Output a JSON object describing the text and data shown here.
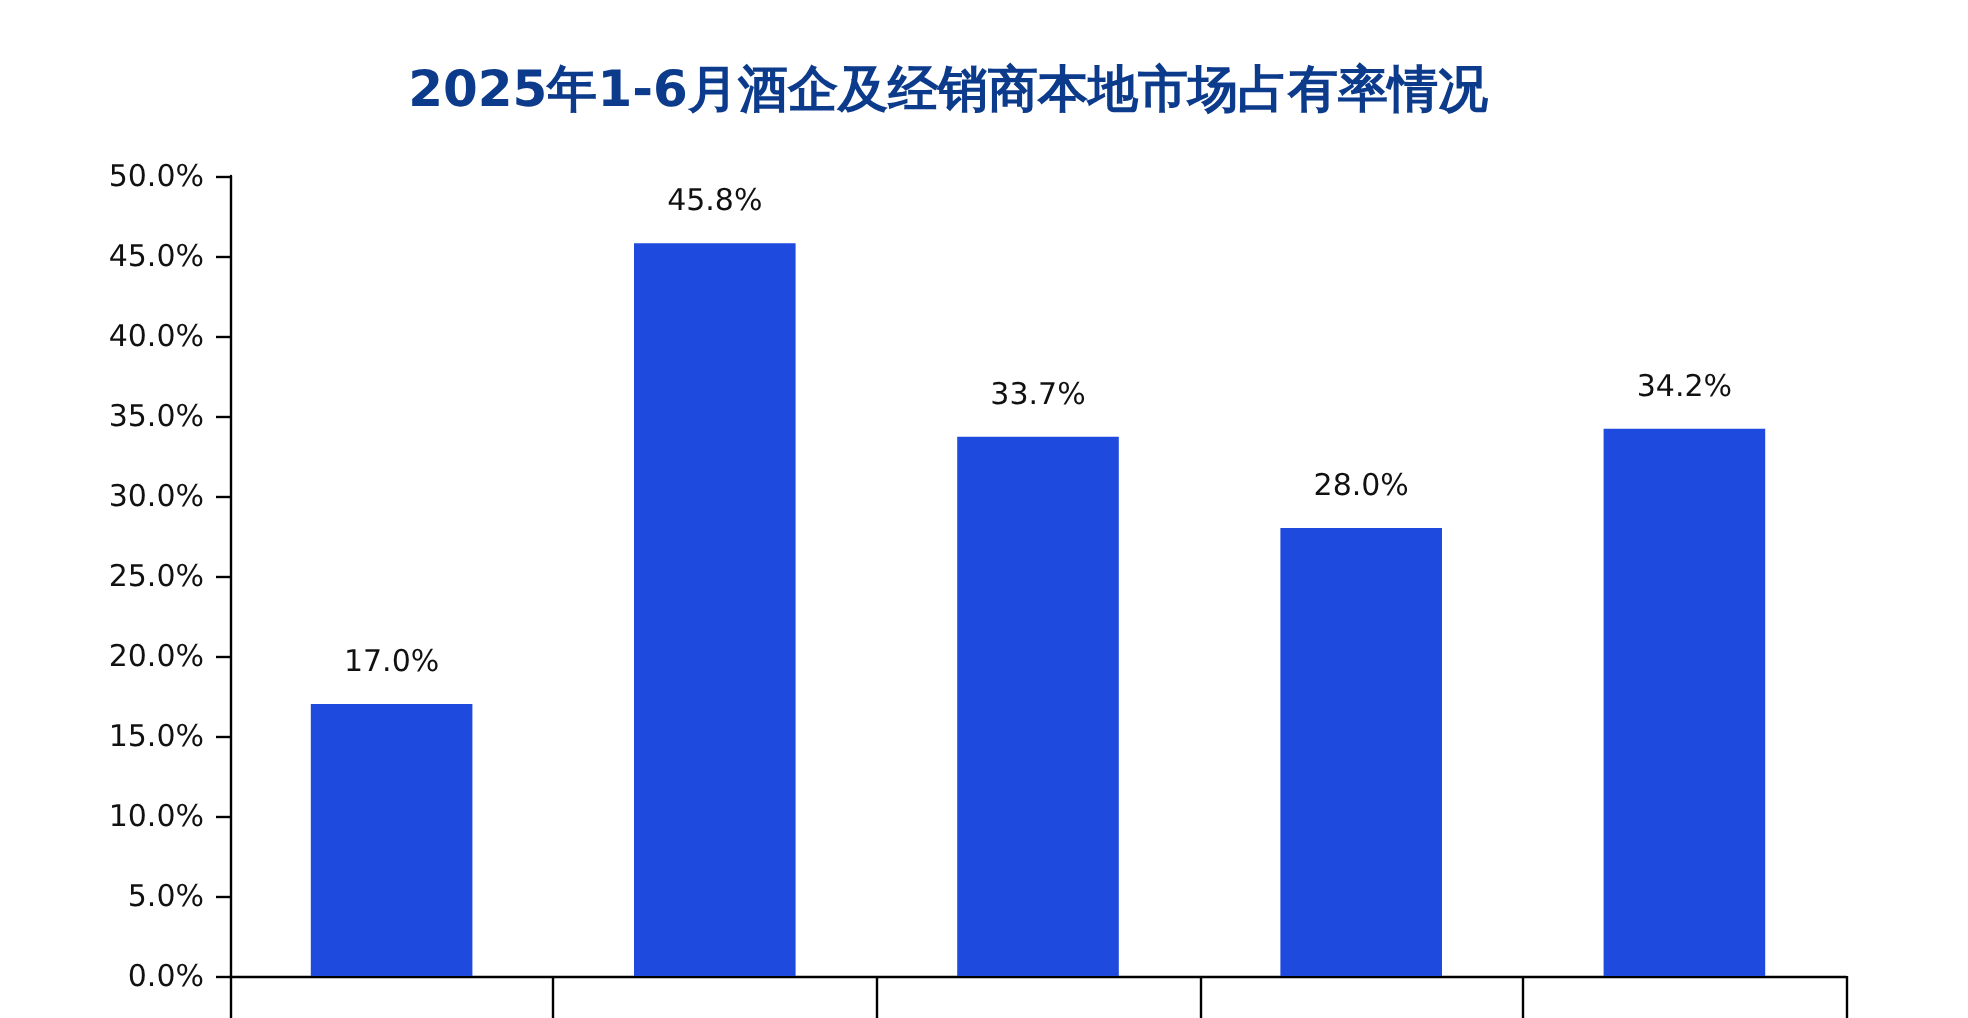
{
  "chart_data": {
    "type": "bar",
    "title": "2025年1-6月酒企及经销商本地市场占有率情况",
    "categories": [
      null,
      null,
      null,
      null,
      null
    ],
    "values": [
      17.0,
      45.8,
      33.7,
      28.0,
      34.2
    ],
    "value_labels": [
      "17.0%",
      "45.8%",
      "33.7%",
      "28.0%",
      "34.2%"
    ],
    "color": "#1f4ade",
    "ylim": [
      0,
      50
    ],
    "yticks": [
      {
        "value": 0,
        "label": "0.0%"
      },
      {
        "value": 5,
        "label": "5.0%"
      },
      {
        "value": 10,
        "label": "10.0%"
      },
      {
        "value": 15,
        "label": "15.0%"
      },
      {
        "value": 20,
        "label": "20.0%"
      },
      {
        "value": 25,
        "label": "25.0%"
      },
      {
        "value": 30,
        "label": "30.0%"
      },
      {
        "value": 35,
        "label": "35.0%"
      },
      {
        "value": 40,
        "label": "40.0%"
      },
      {
        "value": 45,
        "label": "45.0%"
      },
      {
        "value": 50,
        "label": "50.0%"
      }
    ],
    "grid": false
  }
}
